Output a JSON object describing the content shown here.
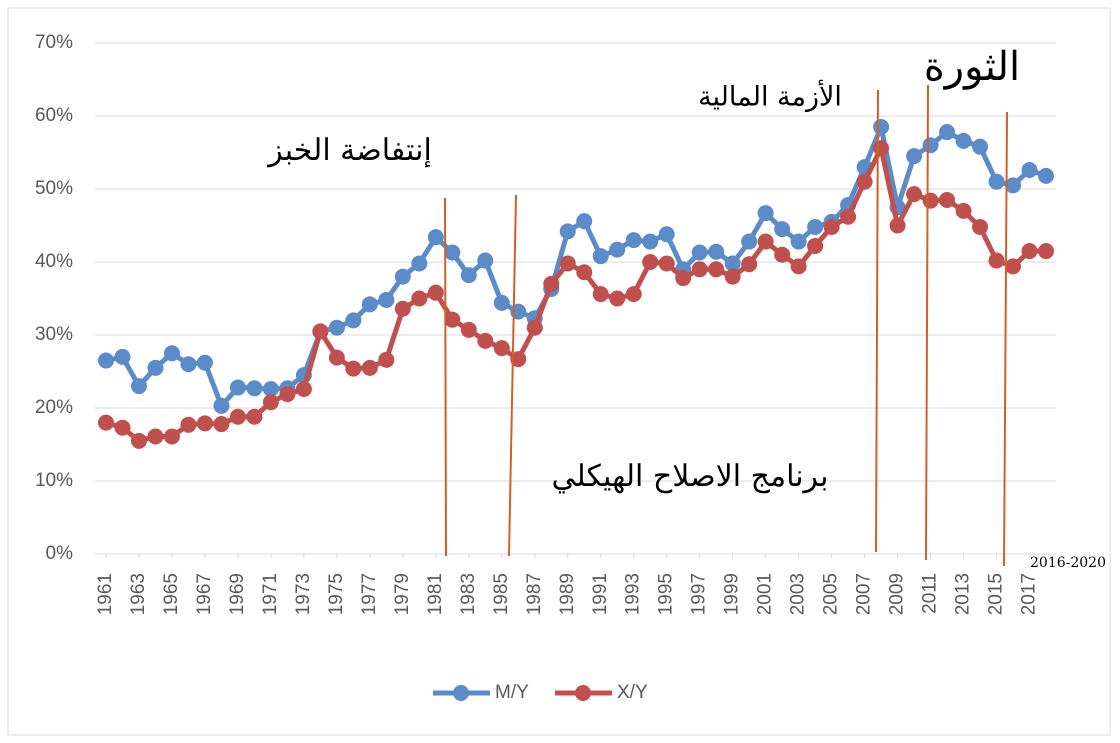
{
  "chart_data": {
    "type": "line",
    "x": [
      1961,
      1962,
      1963,
      1964,
      1965,
      1966,
      1967,
      1968,
      1969,
      1970,
      1971,
      1972,
      1973,
      1974,
      1975,
      1976,
      1977,
      1978,
      1979,
      1980,
      1981,
      1982,
      1983,
      1984,
      1985,
      1986,
      1987,
      1988,
      1989,
      1990,
      1991,
      1992,
      1993,
      1994,
      1995,
      1996,
      1997,
      1998,
      1999,
      2000,
      2001,
      2002,
      2003,
      2004,
      2005,
      2006,
      2007,
      2008,
      2009,
      2010,
      2011,
      2012,
      2013,
      2014,
      2015,
      2016,
      2017,
      2018
    ],
    "xlim": [
      1961,
      2018
    ],
    "xticks": [
      1961,
      1963,
      1965,
      1967,
      1969,
      1971,
      1973,
      1975,
      1977,
      1979,
      1981,
      1983,
      1985,
      1987,
      1989,
      1991,
      1993,
      1995,
      1997,
      1999,
      2001,
      2003,
      2005,
      2007,
      2009,
      2011,
      2013,
      2015,
      2017
    ],
    "ylim": [
      0,
      70
    ],
    "yticks": [
      {
        "value": 0,
        "label": "0%"
      },
      {
        "value": 10,
        "label": "10%"
      },
      {
        "value": 20,
        "label": "20%"
      },
      {
        "value": 30,
        "label": "30%"
      },
      {
        "value": 40,
        "label": "40%"
      },
      {
        "value": 50,
        "label": "50%"
      },
      {
        "value": 60,
        "label": "60%"
      },
      {
        "value": 70,
        "label": "70%"
      }
    ],
    "grid": true,
    "legend": "bottom",
    "series": [
      {
        "name": "M/Y",
        "color": "#5b8bc9",
        "values": [
          26.5,
          27,
          23,
          25.5,
          27.5,
          26,
          26.2,
          20.3,
          22.8,
          22.7,
          22.6,
          22.7,
          24.5,
          30.5,
          31,
          32,
          34.2,
          34.8,
          38,
          39.8,
          43.4,
          41.3,
          38.2,
          40.2,
          34.4,
          33.2,
          32.3,
          36.3,
          44.2,
          45.6,
          40.8,
          41.7,
          43,
          42.8,
          43.8,
          39,
          41.3,
          41.4,
          39.8,
          42.8,
          46.7,
          44.5,
          42.8,
          44.8,
          45.5,
          47.8,
          53,
          58.5,
          47.5,
          54.5,
          56,
          57.8,
          56.6,
          55.8,
          51,
          50.5,
          52.6,
          51.8
        ]
      },
      {
        "name": "X/Y",
        "color": "#c0504d",
        "values": [
          18,
          17.3,
          15.5,
          16.1,
          16.1,
          17.7,
          17.9,
          17.8,
          18.8,
          18.8,
          20.8,
          21.9,
          22.6,
          30.5,
          26.9,
          25.4,
          25.5,
          26.6,
          33.6,
          35,
          35.8,
          32.1,
          30.7,
          29.2,
          28.2,
          26.7,
          31,
          37,
          39.8,
          38.6,
          35.6,
          35,
          35.6,
          40,
          39.8,
          37.8,
          39,
          39,
          38,
          39.7,
          42.8,
          41,
          39.4,
          42.2,
          44.8,
          46.2,
          51,
          55.6,
          45,
          49.3,
          48.4,
          48.5,
          47,
          44.8,
          40.2,
          39.4,
          41.5,
          41.5
        ]
      }
    ],
    "annotations": [
      "إنتفاضة الخبز",
      "برنامج الاصلاح الهيكلي",
      "الأزمة المالية",
      "الثورة",
      "2016-2020"
    ]
  }
}
